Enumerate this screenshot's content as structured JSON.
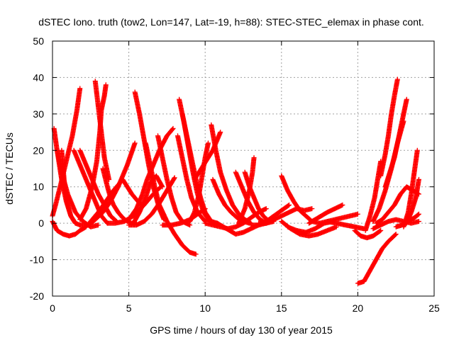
{
  "chart_data": {
    "type": "scatter",
    "title": "dSTEC Iono. truth (tow2, Lon=147, Lat=-19, h=88): STEC-STEC_elemax in phase cont.",
    "xlabel": "GPS time / hours of day 130 of year 2015",
    "ylabel": "dSTEC  / TECUs",
    "xlim": [
      0,
      25
    ],
    "ylim": [
      -20,
      50
    ],
    "xticks": [
      0,
      5,
      10,
      15,
      20,
      25
    ],
    "yticks": [
      -20,
      -10,
      0,
      10,
      20,
      30,
      40,
      50
    ],
    "grid": true,
    "marker": "+",
    "color": "#ff0000",
    "series": [
      {
        "x": [
          0.0,
          0.3,
          0.7,
          1.1,
          1.5,
          1.8,
          2.0,
          2.2
        ],
        "y": [
          0.5,
          -2.0,
          -3.0,
          -3.5,
          -3.0,
          -2.0,
          -1.5,
          -1.0
        ]
      },
      {
        "x": [
          0.0,
          0.2,
          0.5,
          0.9,
          1.3,
          1.6,
          1.8
        ],
        "y": [
          2.0,
          5.0,
          10.0,
          17.0,
          24.0,
          31.0,
          37.0
        ]
      },
      {
        "x": [
          0.1,
          0.3,
          0.6,
          1.0,
          1.5,
          2.0,
          2.5,
          3.0
        ],
        "y": [
          26.0,
          20.0,
          14.0,
          8.0,
          3.0,
          0.5,
          -1.0,
          -0.5
        ]
      },
      {
        "x": [
          0.3,
          0.6,
          0.9,
          1.2,
          1.5
        ],
        "y": [
          20.0,
          12.0,
          6.0,
          2.0,
          0.0
        ]
      },
      {
        "x": [
          0.6,
          0.7,
          0.8,
          1.0,
          1.2,
          1.5,
          1.8
        ],
        "y": [
          20.0,
          15.0,
          10.0,
          5.0,
          2.0,
          0.0,
          -0.5
        ]
      },
      {
        "x": [
          1.4,
          1.8,
          2.3,
          2.8,
          3.2,
          3.6
        ],
        "y": [
          20.0,
          16.0,
          11.0,
          6.0,
          2.0,
          0.0
        ]
      },
      {
        "x": [
          1.8,
          2.2,
          2.6,
          3.0,
          3.4,
          3.8,
          4.2
        ],
        "y": [
          20.0,
          16.0,
          12.0,
          8.0,
          5.0,
          2.0,
          0.5
        ]
      },
      {
        "x": [
          1.8,
          2.4,
          2.8,
          3.3,
          3.8,
          4.3,
          4.9,
          5.4
        ],
        "y": [
          -0.5,
          -0.5,
          1.0,
          3.0,
          6.0,
          10.0,
          16.0,
          22.0
        ]
      },
      {
        "x": [
          1.8,
          2.2,
          2.6,
          2.9,
          3.1,
          3.2,
          3.4,
          3.5
        ],
        "y": [
          1.0,
          4.0,
          10.0,
          17.0,
          25.0,
          31.0,
          35.0,
          38.0
        ]
      },
      {
        "x": [
          2.8,
          3.0,
          3.2,
          3.4,
          3.7
        ],
        "y": [
          39.0,
          32.0,
          25.0,
          18.0,
          12.0
        ]
      },
      {
        "x": [
          3.3,
          3.6,
          3.8,
          4.0,
          4.3,
          4.6,
          4.9,
          5.2,
          5.5
        ],
        "y": [
          15.0,
          10.0,
          7.0,
          5.0,
          3.0,
          1.5,
          0.5,
          0.0,
          0.0
        ]
      },
      {
        "x": [
          3.6,
          4.1,
          4.7,
          5.3,
          6.0,
          6.6,
          7.1
        ],
        "y": [
          0.0,
          0.0,
          0.5,
          2.0,
          5.0,
          8.0,
          10.0
        ]
      },
      {
        "x": [
          2.4,
          3.0,
          3.5,
          4.0,
          4.6,
          5.2,
          5.8
        ],
        "y": [
          0.0,
          3.0,
          6.0,
          9.0,
          12.0,
          8.0,
          5.0
        ]
      },
      {
        "x": [
          5.0,
          5.5,
          6.0,
          6.5,
          7.0,
          7.5,
          8.0
        ],
        "y": [
          -0.5,
          -0.5,
          0.5,
          2.5,
          5.5,
          9.0,
          12.5
        ]
      },
      {
        "x": [
          5.3,
          5.7,
          6.1,
          6.4,
          6.8,
          7.2
        ],
        "y": [
          0.0,
          3.0,
          7.0,
          11.0,
          13.0,
          10.0
        ]
      },
      {
        "x": [
          5.0,
          5.5,
          5.9,
          6.2,
          6.6,
          7.0,
          7.5,
          7.9
        ],
        "y": [
          1.0,
          4.0,
          8.0,
          12.0,
          16.0,
          20.0,
          24.0,
          26.0
        ]
      },
      {
        "x": [
          5.4,
          5.7,
          6.0,
          6.3,
          6.6,
          7.0,
          7.3
        ],
        "y": [
          36.0,
          30.0,
          23.0,
          16.0,
          10.0,
          4.0,
          1.0
        ]
      },
      {
        "x": [
          6.1,
          6.4,
          6.7,
          7.0,
          7.5,
          8.0,
          8.5,
          9.0,
          9.4
        ],
        "y": [
          22.0,
          16.0,
          10.0,
          5.0,
          0.5,
          -3.0,
          -6.0,
          -8.0,
          -8.5
        ]
      },
      {
        "x": [
          6.9,
          7.2,
          7.5,
          7.8,
          8.1,
          8.5,
          9.0
        ],
        "y": [
          24.0,
          18.0,
          12.0,
          7.0,
          3.0,
          0.5,
          -0.5
        ]
      },
      {
        "x": [
          7.2,
          7.8,
          8.4,
          9.0,
          9.5,
          10.0
        ],
        "y": [
          -0.5,
          -0.5,
          0.0,
          1.0,
          2.5,
          4.0
        ]
      },
      {
        "x": [
          8.3,
          8.6,
          8.9,
          9.2,
          9.5,
          9.9,
          10.3,
          10.7
        ],
        "y": [
          34.0,
          28.0,
          21.0,
          14.0,
          8.0,
          3.0,
          0.5,
          -0.5
        ]
      },
      {
        "x": [
          8.5,
          8.8,
          9.1,
          9.4,
          9.7,
          10.0,
          10.4,
          10.8
        ],
        "y": [
          30.0,
          24.0,
          18.0,
          12.0,
          7.0,
          3.0,
          0.5,
          0.0
        ]
      },
      {
        "x": [
          8.2,
          8.5,
          8.8,
          9.1,
          9.5,
          10.0
        ],
        "y": [
          24.0,
          18.0,
          12.0,
          7.0,
          3.0,
          0.5
        ]
      },
      {
        "x": [
          9.0,
          9.3,
          9.6,
          9.8,
          10.0,
          10.2
        ],
        "y": [
          0.5,
          3.0,
          8.0,
          13.0,
          18.0,
          22.0
        ]
      },
      {
        "x": [
          9.3,
          9.6,
          9.9,
          10.2,
          10.5,
          11.0
        ],
        "y": [
          12.0,
          14.0,
          16.0,
          18.0,
          20.0,
          25.0
        ]
      },
      {
        "x": [
          10.4,
          10.7,
          11.0,
          11.4,
          11.8,
          12.2,
          12.6,
          13.0
        ],
        "y": [
          27.0,
          20.0,
          14.0,
          9.0,
          5.0,
          2.5,
          1.0,
          0.0
        ]
      },
      {
        "x": [
          10.5,
          10.9,
          11.3,
          11.7,
          12.1,
          12.5,
          12.9
        ],
        "y": [
          12.0,
          8.0,
          5.0,
          3.0,
          1.5,
          0.5,
          0.0
        ]
      },
      {
        "x": [
          10.0,
          10.5,
          11.0,
          11.5,
          12.0,
          12.5,
          13.0,
          13.5,
          14.0
        ],
        "y": [
          0.0,
          -0.5,
          -1.0,
          -1.5,
          -1.0,
          0.0,
          1.5,
          3.0,
          4.0
        ]
      },
      {
        "x": [
          10.8,
          11.2,
          11.6,
          12.0,
          12.5,
          13.0,
          13.5,
          14.0,
          14.5
        ],
        "y": [
          0.0,
          -1.0,
          -2.0,
          -3.0,
          -2.5,
          -1.5,
          -0.5,
          0.0,
          0.5
        ]
      },
      {
        "x": [
          12.0,
          12.4,
          12.8,
          13.2,
          13.6,
          14.0
        ],
        "y": [
          14.0,
          10.0,
          6.0,
          3.0,
          1.0,
          0.0
        ]
      },
      {
        "x": [
          12.6,
          12.9,
          13.2,
          13.5,
          13.8,
          14.2
        ],
        "y": [
          14.0,
          10.0,
          7.0,
          4.0,
          2.0,
          0.5
        ]
      },
      {
        "x": [
          12.2,
          12.6,
          12.9,
          13.1,
          13.2
        ],
        "y": [
          0.0,
          4.0,
          9.0,
          14.0,
          18.0
        ]
      },
      {
        "x": [
          13.0,
          13.5,
          14.0,
          14.5,
          15.0,
          15.5
        ],
        "y": [
          -0.5,
          -0.5,
          0.5,
          2.0,
          3.5,
          5.0
        ]
      },
      {
        "x": [
          13.5,
          14.0,
          14.5,
          15.0,
          15.5,
          16.0,
          16.5,
          17.0
        ],
        "y": [
          0.0,
          0.0,
          1.0,
          2.0,
          3.0,
          4.0,
          3.5,
          4.0
        ]
      },
      {
        "x": [
          15.0,
          15.4,
          15.8,
          16.2,
          16.6,
          17.0,
          17.5
        ],
        "y": [
          13.0,
          9.0,
          6.0,
          3.5,
          2.0,
          0.5,
          0.0
        ]
      },
      {
        "x": [
          15.0,
          15.6,
          16.2,
          16.8,
          17.4,
          18.0,
          18.6
        ],
        "y": [
          0.5,
          -1.5,
          -3.0,
          -3.5,
          -3.0,
          -2.0,
          -1.0
        ]
      },
      {
        "x": [
          15.4,
          16.0,
          16.6,
          17.2,
          17.8,
          18.4
        ],
        "y": [
          -1.0,
          -2.0,
          -2.5,
          -1.5,
          0.0,
          0.5
        ]
      },
      {
        "x": [
          16.8,
          17.2,
          17.6,
          18.0,
          18.5,
          19.0
        ],
        "y": [
          0.0,
          1.0,
          2.0,
          3.0,
          4.0,
          5.0
        ]
      },
      {
        "x": [
          17.5,
          18.0,
          18.5,
          19.0,
          19.5,
          20.0
        ],
        "y": [
          0.0,
          0.5,
          1.0,
          1.5,
          2.0,
          2.5
        ]
      },
      {
        "x": [
          18.0,
          18.6,
          19.2,
          19.8,
          20.4
        ],
        "y": [
          0.5,
          0.0,
          -0.5,
          -1.0,
          -1.5
        ]
      },
      {
        "x": [
          19.8,
          20.2,
          20.6,
          21.0,
          21.5
        ],
        "y": [
          -2.0,
          -3.5,
          -4.0,
          -3.5,
          -2.0
        ]
      },
      {
        "x": [
          20.0,
          20.4,
          20.8,
          21.2,
          21.6,
          22.0,
          22.5
        ],
        "y": [
          -16.5,
          -16.0,
          -13.0,
          -10.0,
          -7.0,
          -5.0,
          -3.0
        ]
      },
      {
        "x": [
          20.5,
          20.8,
          21.1,
          21.3,
          21.5
        ],
        "y": [
          -2.0,
          2.0,
          7.0,
          12.0,
          17.0
        ]
      },
      {
        "x": [
          21.0,
          21.5,
          22.0,
          22.5,
          23.0,
          23.5,
          24.0
        ],
        "y": [
          -1.5,
          -0.5,
          0.5,
          1.0,
          0.5,
          0.0,
          0.5
        ]
      },
      {
        "x": [
          21.2,
          21.6,
          22.0,
          22.4,
          22.8,
          23.2,
          23.6,
          24.0
        ],
        "y": [
          0.0,
          1.0,
          3.0,
          5.0,
          8.0,
          10.0,
          9.0,
          8.0
        ]
      },
      {
        "x": [
          21.5,
          21.8,
          22.0,
          22.2,
          22.4,
          22.6
        ],
        "y": [
          13.0,
          19.0,
          24.0,
          30.0,
          35.0,
          39.5
        ]
      },
      {
        "x": [
          21.0,
          21.4,
          21.8,
          22.2,
          22.6,
          23.0
        ],
        "y": [
          0.5,
          4.0,
          9.0,
          15.0,
          22.0,
          28.0
        ]
      },
      {
        "x": [
          21.8,
          22.1,
          22.4,
          22.7,
          23.0,
          23.2
        ],
        "y": [
          10.0,
          14.0,
          18.0,
          24.0,
          30.0,
          34.0
        ]
      },
      {
        "x": [
          23.0,
          23.3,
          23.5,
          23.7,
          23.9
        ],
        "y": [
          -1.0,
          3.0,
          8.0,
          14.0,
          20.0
        ]
      },
      {
        "x": [
          23.2,
          23.5,
          23.8,
          24.0
        ],
        "y": [
          0.0,
          3.0,
          7.0,
          12.0
        ]
      },
      {
        "x": [
          22.5,
          22.9,
          23.3,
          23.7,
          24.0
        ],
        "y": [
          -1.0,
          -0.5,
          0.5,
          1.5,
          2.5
        ]
      }
    ]
  }
}
